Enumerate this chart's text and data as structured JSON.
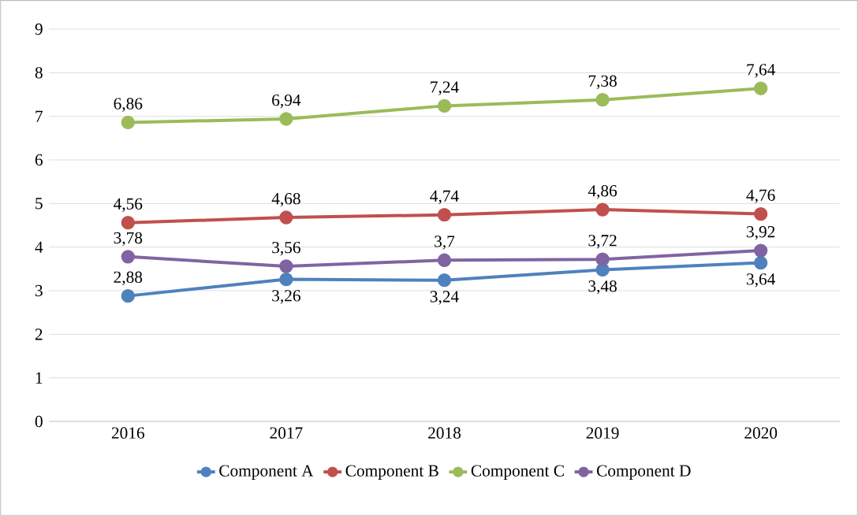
{
  "chart_data": {
    "type": "line",
    "categories": [
      "2016",
      "2017",
      "2018",
      "2019",
      "2020"
    ],
    "series": [
      {
        "name": "Component A",
        "color": "#4f81bd",
        "values": [
          2.88,
          3.26,
          3.24,
          3.48,
          3.64
        ],
        "value_labels": [
          "2,88",
          "3,26",
          "3,24",
          "3,48",
          "3,64"
        ]
      },
      {
        "name": "Component B",
        "color": "#c0504d",
        "values": [
          4.56,
          4.68,
          4.74,
          4.86,
          4.76
        ],
        "value_labels": [
          "4,56",
          "4,68",
          "4,74",
          "4,86",
          "4,76"
        ]
      },
      {
        "name": "Component C",
        "color": "#9bbb59",
        "values": [
          6.86,
          6.94,
          7.24,
          7.38,
          7.64
        ],
        "value_labels": [
          "6,86",
          "6,94",
          "7,24",
          "7,38",
          "7,64"
        ]
      },
      {
        "name": "Component D",
        "color": "#8064a2",
        "values": [
          3.78,
          3.56,
          3.7,
          3.72,
          3.92
        ],
        "value_labels": [
          "3,78",
          "3,56",
          "3,7",
          "3,72",
          "3,92"
        ]
      }
    ],
    "ylim": [
      0,
      9
    ],
    "yticks": [
      0,
      1,
      2,
      3,
      4,
      5,
      6,
      7,
      8,
      9
    ],
    "grid": "y",
    "legend": "bottom",
    "marker": "circle",
    "line_style": "solid"
  }
}
